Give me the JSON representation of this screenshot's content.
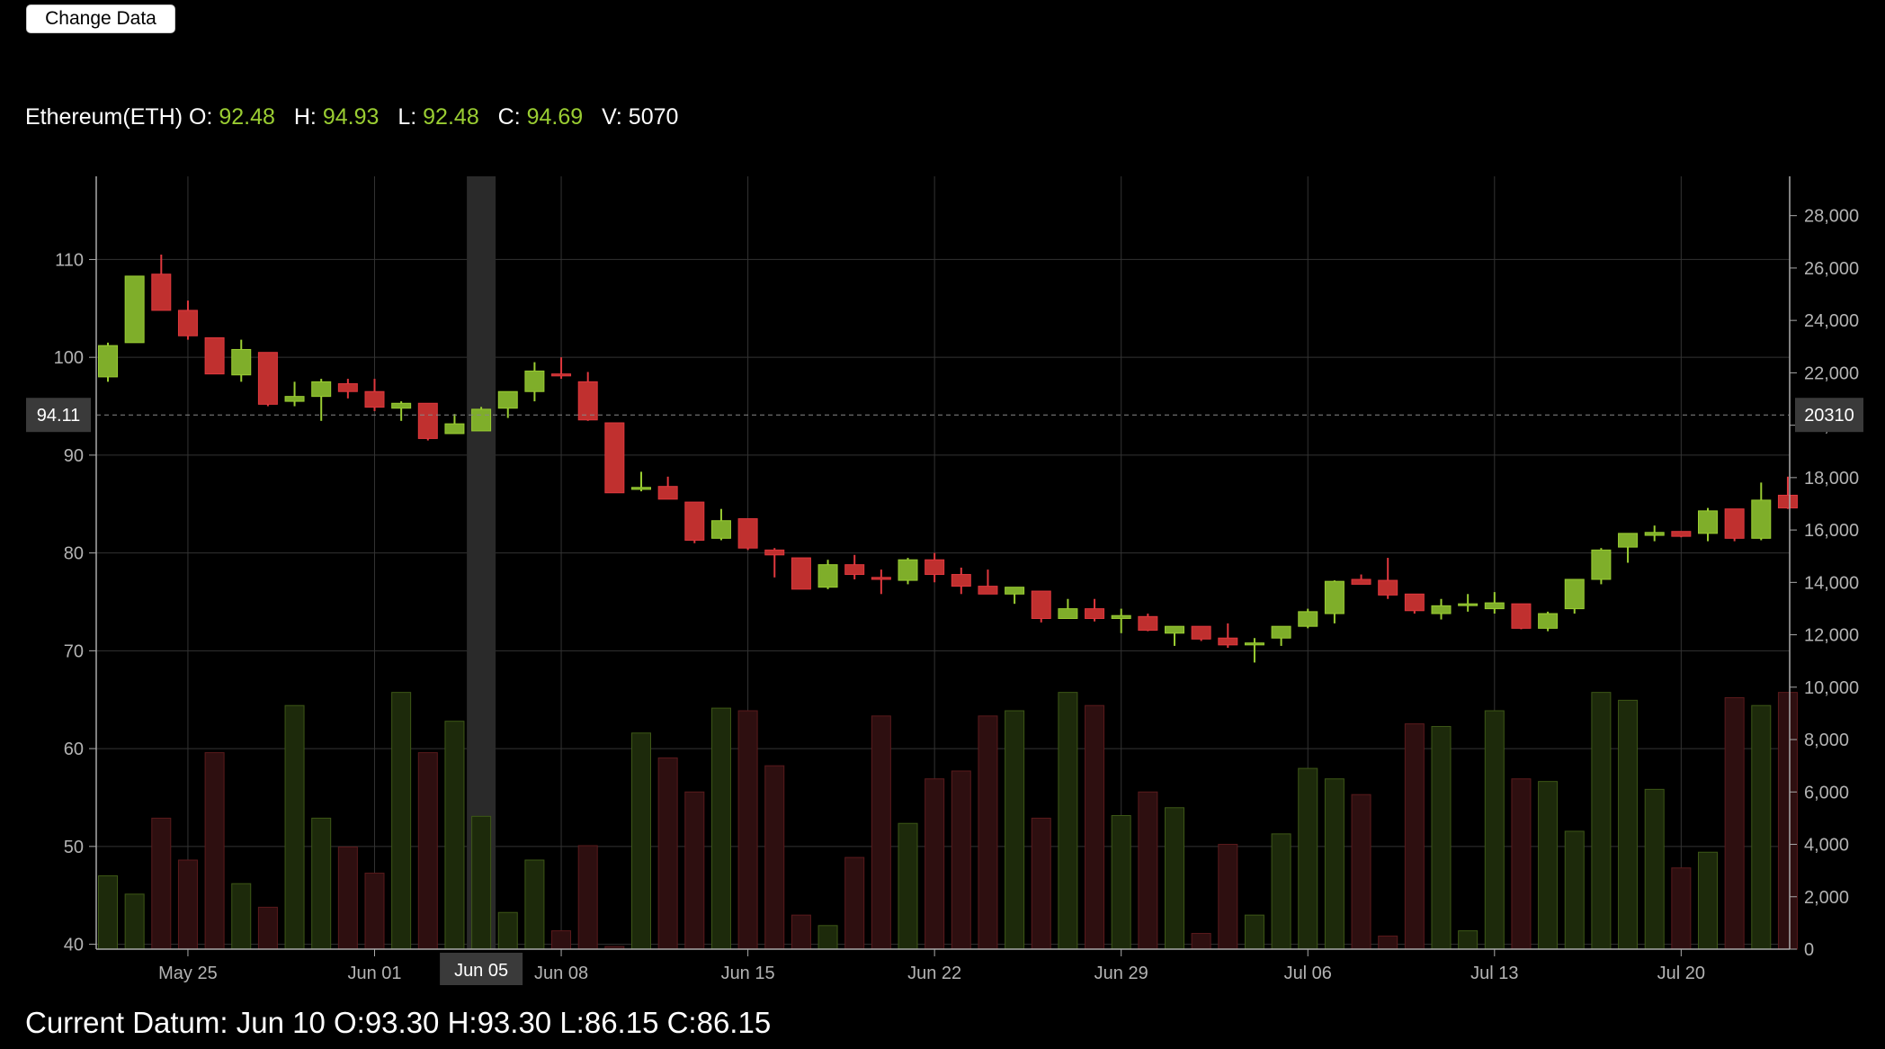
{
  "controls": {
    "change_data_label": "Change Data"
  },
  "header": {
    "name": "Ethereum(ETH)",
    "open_label": "O:",
    "open": "92.48",
    "high_label": "H:",
    "high": "94.93",
    "low_label": "L:",
    "low": "92.48",
    "close_label": "C:",
    "close": "94.69",
    "volume_label": "V:",
    "volume": "5070"
  },
  "footer": {
    "text": "Current Datum: Jun 10 O:93.30 H:93.30 L:86.15 C:86.15"
  },
  "crosshair": {
    "price_label": "94.11",
    "volume_label": "20310",
    "date_label": "Jun 05",
    "price": 94.11,
    "date_index": 14
  },
  "colors": {
    "up": "#9acd32",
    "down": "#e0383e",
    "background": "#000000",
    "grid": "#333333"
  },
  "chart_data": {
    "type": "candlestick",
    "y_left_ticks": [
      40,
      50,
      60,
      70,
      80,
      90,
      100,
      110
    ],
    "y_left_range": [
      39.5,
      118.5
    ],
    "y_right_ticks": [
      "0",
      "2,000",
      "4,000",
      "6,000",
      "8,000",
      "10,000",
      "12,000",
      "14,000",
      "16,000",
      "18,000",
      "20,000",
      "22,000",
      "24,000",
      "26,000",
      "28,000"
    ],
    "y_right_range": [
      0,
      29500
    ],
    "x_ticks": [
      {
        "label": "May 25",
        "index": 3
      },
      {
        "label": "Jun 01",
        "index": 10
      },
      {
        "label": "Jun 08",
        "index": 17
      },
      {
        "label": "Jun 15",
        "index": 24
      },
      {
        "label": "Jun 22",
        "index": 31
      },
      {
        "label": "Jun 29",
        "index": 38
      },
      {
        "label": "Jul 06",
        "index": 45
      },
      {
        "label": "Jul 13",
        "index": 52
      },
      {
        "label": "Jul 20",
        "index": 59
      }
    ],
    "grid": true,
    "candles": [
      {
        "o": 98,
        "h": 101.5,
        "l": 97.5,
        "c": 101.2,
        "v": 2800
      },
      {
        "o": 101.5,
        "h": 108.3,
        "l": 101.5,
        "c": 108.3,
        "v": 2100
      },
      {
        "o": 108.5,
        "h": 110.5,
        "l": 104.8,
        "c": 104.8,
        "v": 5000
      },
      {
        "o": 104.8,
        "h": 105.8,
        "l": 101.8,
        "c": 102.2,
        "v": 3400
      },
      {
        "o": 102,
        "h": 102,
        "l": 98.3,
        "c": 98.3,
        "v": 7500
      },
      {
        "o": 98.2,
        "h": 101.8,
        "l": 97.5,
        "c": 100.8,
        "v": 2500
      },
      {
        "o": 100.5,
        "h": 100.5,
        "l": 95,
        "c": 95.2,
        "v": 1600
      },
      {
        "o": 95.5,
        "h": 97.5,
        "l": 95,
        "c": 96,
        "v": 9300
      },
      {
        "o": 96,
        "h": 97.8,
        "l": 93.5,
        "c": 97.5,
        "v": 5000
      },
      {
        "o": 97.3,
        "h": 97.8,
        "l": 95.8,
        "c": 96.5,
        "v": 3900
      },
      {
        "o": 96.5,
        "h": 97.8,
        "l": 94.5,
        "c": 94.9,
        "v": 2900
      },
      {
        "o": 94.8,
        "h": 95.5,
        "l": 93.5,
        "c": 95.3,
        "v": 9800
      },
      {
        "o": 95.3,
        "h": 95.3,
        "l": 91.5,
        "c": 91.7,
        "v": 7500
      },
      {
        "o": 92.2,
        "h": 94.2,
        "l": 92.2,
        "c": 93.2,
        "v": 8700
      },
      {
        "o": 92.48,
        "h": 94.93,
        "l": 92.48,
        "c": 94.69,
        "v": 5070
      },
      {
        "o": 94.8,
        "h": 96.5,
        "l": 93.8,
        "c": 96.5,
        "v": 1400
      },
      {
        "o": 96.5,
        "h": 99.5,
        "l": 95.5,
        "c": 98.6,
        "v": 3400
      },
      {
        "o": 98.3,
        "h": 100,
        "l": 97.8,
        "c": 98.1,
        "v": 700
      },
      {
        "o": 97.5,
        "h": 98.5,
        "l": 93.5,
        "c": 93.6,
        "v": 3950
      },
      {
        "o": 93.3,
        "h": 93.3,
        "l": 86.15,
        "c": 86.15,
        "v": 100
      },
      {
        "o": 86.5,
        "h": 88.3,
        "l": 86.3,
        "c": 86.7,
        "v": 8250
      },
      {
        "o": 86.8,
        "h": 87.8,
        "l": 85.5,
        "c": 85.5,
        "v": 7300
      },
      {
        "o": 85.2,
        "h": 85.2,
        "l": 81,
        "c": 81.3,
        "v": 6000
      },
      {
        "o": 81.5,
        "h": 84.5,
        "l": 81.3,
        "c": 83.3,
        "v": 9200
      },
      {
        "o": 83.5,
        "h": 83.5,
        "l": 80.3,
        "c": 80.5,
        "v": 9100
      },
      {
        "o": 80.3,
        "h": 80.5,
        "l": 77.5,
        "c": 79.8,
        "v": 7000
      },
      {
        "o": 79.5,
        "h": 79.5,
        "l": 76.3,
        "c": 76.3,
        "v": 1300
      },
      {
        "o": 76.5,
        "h": 79.3,
        "l": 76.3,
        "c": 78.8,
        "v": 900
      },
      {
        "o": 78.8,
        "h": 79.8,
        "l": 77.3,
        "c": 77.8,
        "v": 3500
      },
      {
        "o": 77.5,
        "h": 78.3,
        "l": 75.8,
        "c": 77.3,
        "v": 8900
      },
      {
        "o": 77.2,
        "h": 79.5,
        "l": 76.8,
        "c": 79.3,
        "v": 4800
      },
      {
        "o": 79.3,
        "h": 80,
        "l": 77,
        "c": 77.8,
        "v": 6500
      },
      {
        "o": 77.8,
        "h": 78.5,
        "l": 75.8,
        "c": 76.6,
        "v": 6800
      },
      {
        "o": 76.6,
        "h": 78.3,
        "l": 75.8,
        "c": 75.8,
        "v": 8900
      },
      {
        "o": 75.8,
        "h": 76.5,
        "l": 74.8,
        "c": 76.5,
        "v": 9100
      },
      {
        "o": 76.1,
        "h": 76.1,
        "l": 72.9,
        "c": 73.3,
        "v": 5000
      },
      {
        "o": 73.3,
        "h": 75.3,
        "l": 73.3,
        "c": 74.3,
        "v": 9800
      },
      {
        "o": 74.3,
        "h": 75.3,
        "l": 73,
        "c": 73.3,
        "v": 9300
      },
      {
        "o": 73.3,
        "h": 74.3,
        "l": 71.8,
        "c": 73.6,
        "v": 5100
      },
      {
        "o": 73.5,
        "h": 73.8,
        "l": 72,
        "c": 72.1,
        "v": 6000
      },
      {
        "o": 71.8,
        "h": 72.5,
        "l": 70.5,
        "c": 72.5,
        "v": 5400
      },
      {
        "o": 72.5,
        "h": 72.5,
        "l": 71,
        "c": 71.2,
        "v": 600
      },
      {
        "o": 71.3,
        "h": 72.8,
        "l": 70.3,
        "c": 70.6,
        "v": 4000
      },
      {
        "o": 70.6,
        "h": 71.3,
        "l": 68.8,
        "c": 70.8,
        "v": 1300
      },
      {
        "o": 71.3,
        "h": 72.5,
        "l": 70.5,
        "c": 72.5,
        "v": 4400
      },
      {
        "o": 72.5,
        "h": 74.3,
        "l": 72.3,
        "c": 74,
        "v": 6900
      },
      {
        "o": 73.8,
        "h": 77.2,
        "l": 72.8,
        "c": 77.1,
        "v": 6500
      },
      {
        "o": 77.3,
        "h": 77.8,
        "l": 76.8,
        "c": 76.8,
        "v": 5900
      },
      {
        "o": 77.2,
        "h": 79.5,
        "l": 75.3,
        "c": 75.7,
        "v": 500
      },
      {
        "o": 75.8,
        "h": 75.8,
        "l": 73.8,
        "c": 74.1,
        "v": 8600
      },
      {
        "o": 73.8,
        "h": 75.3,
        "l": 73.2,
        "c": 74.6,
        "v": 8500
      },
      {
        "o": 74.8,
        "h": 75.8,
        "l": 74,
        "c": 74.8,
        "v": 700
      },
      {
        "o": 74.3,
        "h": 76,
        "l": 73.8,
        "c": 74.9,
        "v": 9100
      },
      {
        "o": 74.8,
        "h": 74.8,
        "l": 72.2,
        "c": 72.3,
        "v": 6500
      },
      {
        "o": 72.3,
        "h": 74,
        "l": 72,
        "c": 73.8,
        "v": 6400
      },
      {
        "o": 74.3,
        "h": 77.3,
        "l": 73.8,
        "c": 77.3,
        "v": 4500
      },
      {
        "o": 77.3,
        "h": 80.5,
        "l": 76.8,
        "c": 80.3,
        "v": 9800
      },
      {
        "o": 80.6,
        "h": 82,
        "l": 79,
        "c": 82,
        "v": 9500
      },
      {
        "o": 81.8,
        "h": 82.8,
        "l": 81.2,
        "c": 82.1,
        "v": 6100
      },
      {
        "o": 82.2,
        "h": 82.2,
        "l": 81.6,
        "c": 81.7,
        "v": 3100
      },
      {
        "o": 82,
        "h": 84.6,
        "l": 81.2,
        "c": 84.3,
        "v": 3700
      },
      {
        "o": 84.5,
        "h": 84.5,
        "l": 81.2,
        "c": 81.5,
        "v": 9600
      },
      {
        "o": 81.5,
        "h": 87.2,
        "l": 81.3,
        "c": 85.4,
        "v": 9300
      },
      {
        "o": 85.9,
        "h": 87.8,
        "l": 84.5,
        "c": 84.6,
        "v": 9800
      }
    ]
  }
}
